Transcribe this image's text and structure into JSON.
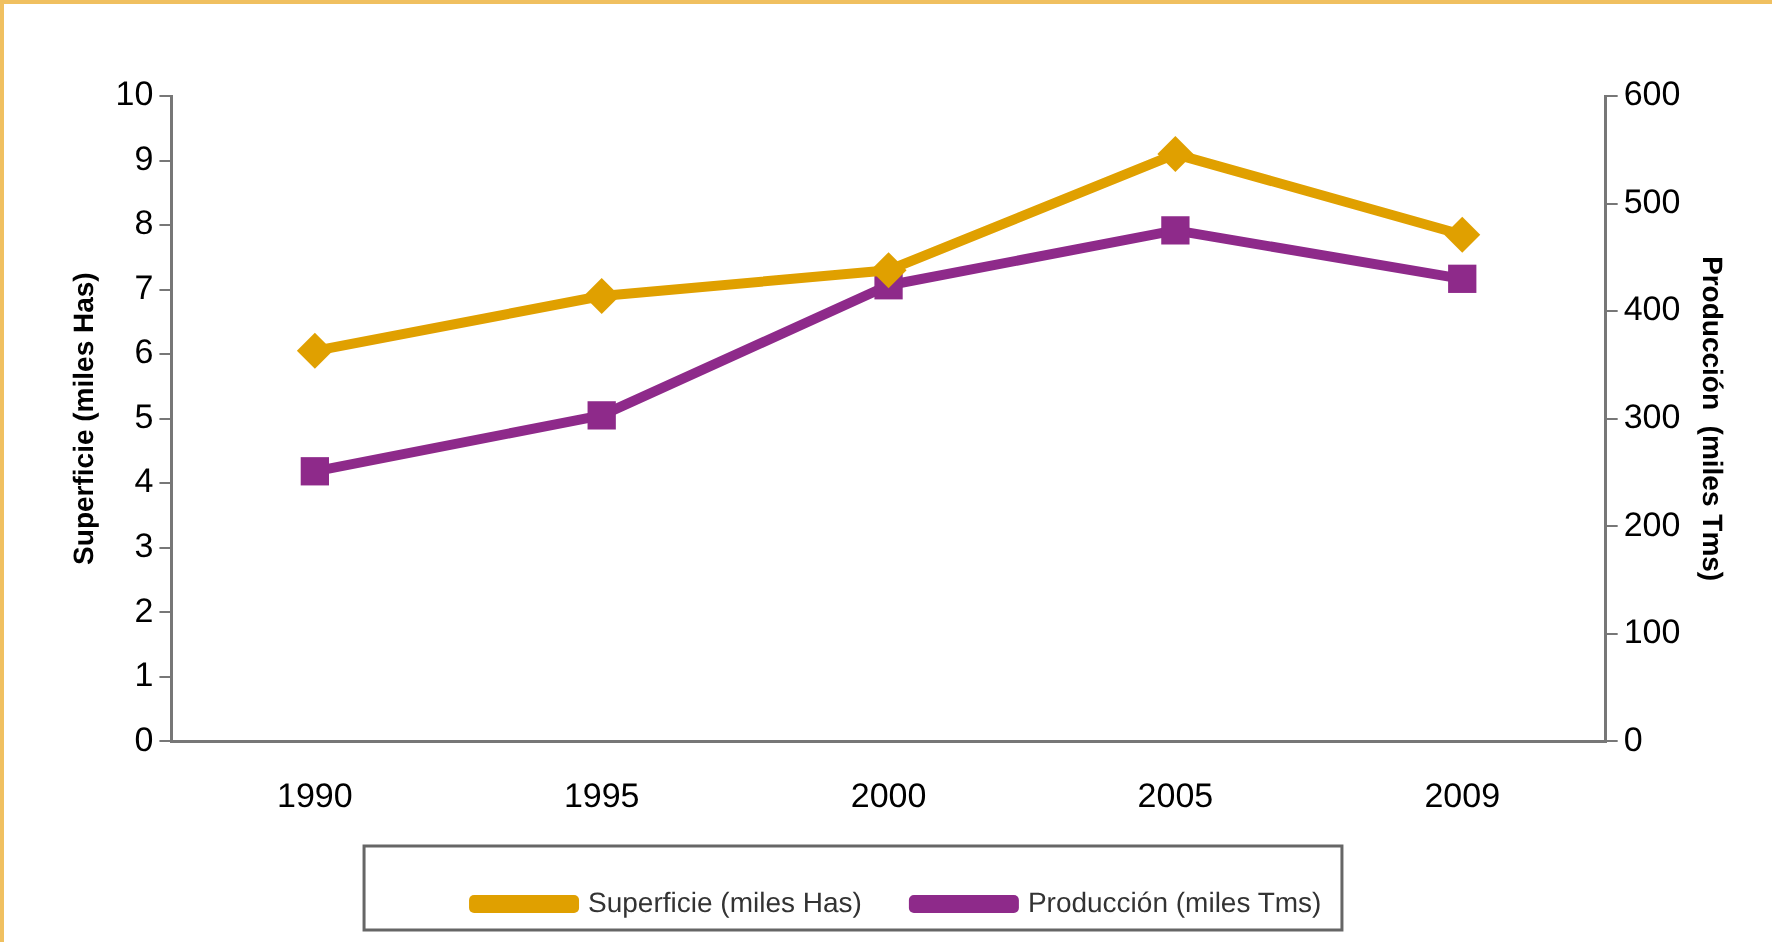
{
  "chart_data": {
    "type": "line",
    "categories": [
      "1990",
      "1995",
      "2000",
      "2005",
      "2009"
    ],
    "series": [
      {
        "name": "Superficie (miles Has)",
        "color": "#e0a000",
        "marker": "diamond",
        "values": [
          6.05,
          6.9,
          7.3,
          9.1,
          7.85
        ]
      },
      {
        "name": "Producción (miles Tms)",
        "color": "#8e2a8a",
        "marker": "square",
        "axis": "y2",
        "values": [
          251,
          303,
          424,
          475,
          430
        ]
      }
    ],
    "ylabel": "Superficie (miles Has)",
    "y2label": "Producción  (miles Tms)",
    "ylim": [
      0,
      10
    ],
    "yticks": [
      0,
      1,
      2,
      3,
      4,
      5,
      6,
      7,
      8,
      9,
      10
    ],
    "y2lim": [
      0,
      600
    ],
    "y2ticks": [
      0,
      100,
      200,
      300,
      400,
      500,
      600
    ],
    "grid": false,
    "legend": "bottom",
    "line_style": "solid"
  }
}
